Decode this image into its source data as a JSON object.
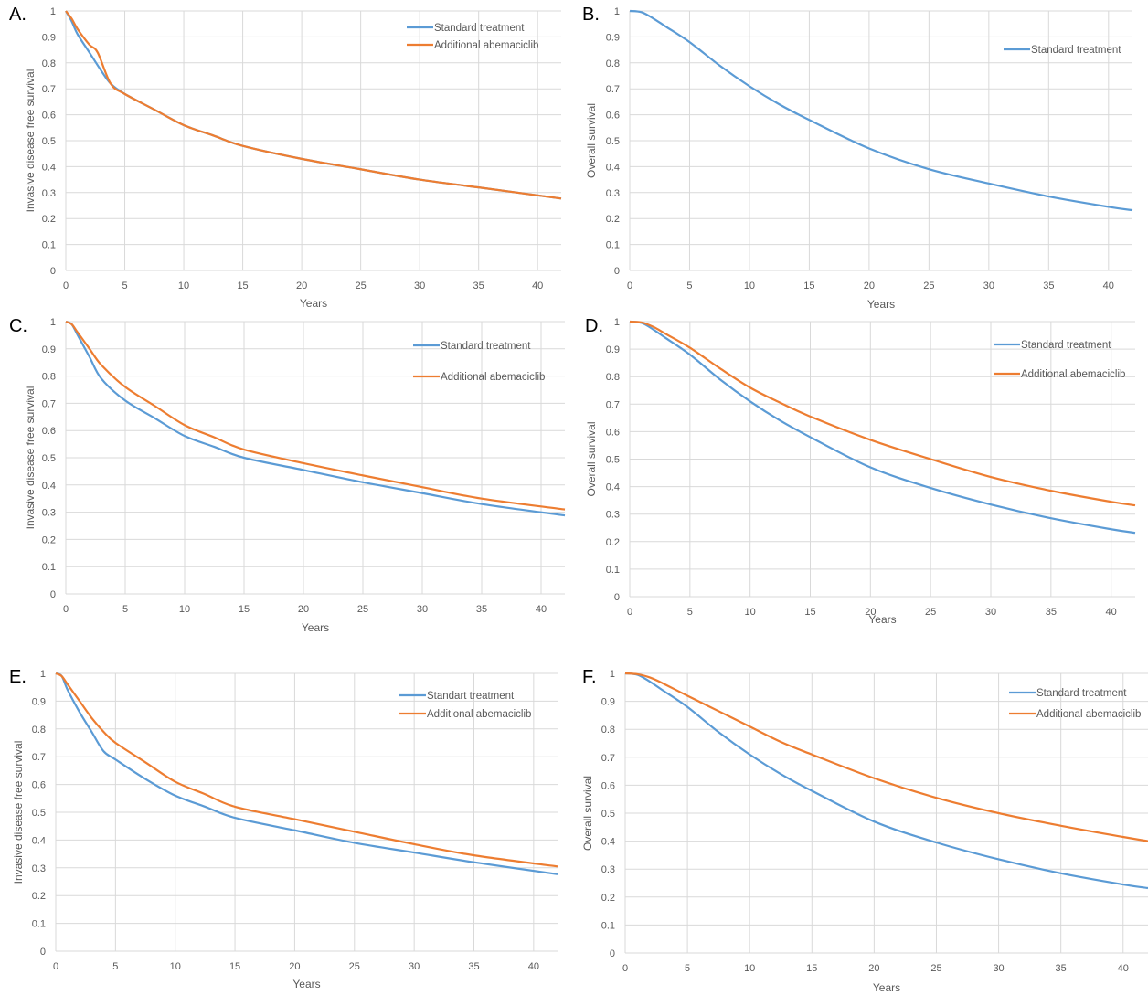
{
  "colors": {
    "standard": "#5b9bd5",
    "abemaciclib": "#ed7d31",
    "grid": "#d9d9d9",
    "tick_text": "#595959",
    "axis_label_text": "#595959"
  },
  "chart_data": [
    {
      "panel": "A.",
      "type": "line",
      "xlabel": "Years",
      "ylabel": "Invasive disease free survival",
      "xlim": [
        0,
        42
      ],
      "ylim": [
        0,
        1
      ],
      "xticks": [
        0,
        5,
        10,
        15,
        20,
        25,
        30,
        35,
        40
      ],
      "yticks": [
        0,
        0.1,
        0.2,
        0.3,
        0.4,
        0.5,
        0.6,
        0.7,
        0.8,
        0.9,
        1
      ],
      "grid": true,
      "legend_position": "top-right",
      "series": [
        {
          "name": "Standard treatment",
          "color_key": "standard",
          "x": [
            0,
            0.5,
            1,
            2,
            3,
            3.8,
            5,
            7.5,
            10,
            12.5,
            15,
            20,
            25,
            30,
            35,
            42
          ],
          "y": [
            1,
            0.96,
            0.91,
            0.84,
            0.77,
            0.72,
            0.68,
            0.62,
            0.56,
            0.52,
            0.48,
            0.43,
            0.39,
            0.35,
            0.32,
            0.277
          ]
        },
        {
          "name": "Additional abemaciclib",
          "color_key": "abemaciclib",
          "x": [
            0,
            0.5,
            1,
            2,
            2.7,
            3.8,
            5,
            7.5,
            10,
            12.5,
            15,
            20,
            25,
            30,
            35,
            42
          ],
          "y": [
            1,
            0.97,
            0.93,
            0.87,
            0.84,
            0.72,
            0.68,
            0.62,
            0.56,
            0.52,
            0.48,
            0.43,
            0.39,
            0.35,
            0.32,
            0.277
          ]
        }
      ]
    },
    {
      "panel": "B.",
      "type": "line",
      "xlabel": "Years",
      "ylabel": "Overall survival",
      "xlim": [
        0,
        42
      ],
      "ylim": [
        0,
        1
      ],
      "xticks": [
        0,
        5,
        10,
        15,
        20,
        25,
        30,
        35,
        40
      ],
      "yticks": [
        0,
        0.1,
        0.2,
        0.3,
        0.4,
        0.5,
        0.6,
        0.7,
        0.8,
        0.9,
        1
      ],
      "grid": true,
      "legend_position": "top-right",
      "series": [
        {
          "name": "Standard treatment",
          "color_key": "standard",
          "x": [
            0,
            1,
            2,
            3,
            5,
            7.5,
            10,
            12.5,
            15,
            20,
            25,
            30,
            35,
            40,
            42
          ],
          "y": [
            1,
            0.995,
            0.97,
            0.94,
            0.88,
            0.79,
            0.71,
            0.64,
            0.58,
            0.47,
            0.39,
            0.335,
            0.285,
            0.245,
            0.232
          ]
        }
      ]
    },
    {
      "panel": "C.",
      "type": "line",
      "xlabel": "Years",
      "ylabel": "Invasive disease free survival",
      "xlim": [
        0,
        42
      ],
      "ylim": [
        0,
        1
      ],
      "xticks": [
        0,
        5,
        10,
        15,
        20,
        25,
        30,
        35,
        40
      ],
      "yticks": [
        0,
        0.1,
        0.2,
        0.3,
        0.4,
        0.5,
        0.6,
        0.7,
        0.8,
        0.9,
        1
      ],
      "grid": true,
      "legend_position": "top-right",
      "series": [
        {
          "name": "Standard treatment",
          "color_key": "standard",
          "x": [
            0,
            0.5,
            1,
            2,
            3,
            5,
            7.5,
            10,
            12.5,
            15,
            20,
            25,
            30,
            35,
            42
          ],
          "y": [
            1,
            0.99,
            0.95,
            0.87,
            0.79,
            0.71,
            0.645,
            0.58,
            0.54,
            0.5,
            0.455,
            0.41,
            0.37,
            0.33,
            0.288
          ]
        },
        {
          "name": "Additional abemaciclib",
          "color_key": "abemaciclib",
          "x": [
            0,
            0.5,
            1,
            2,
            3,
            5,
            7.5,
            10,
            12.5,
            15,
            20,
            25,
            30,
            35,
            42
          ],
          "y": [
            1,
            0.99,
            0.96,
            0.9,
            0.84,
            0.76,
            0.69,
            0.62,
            0.575,
            0.53,
            0.48,
            0.435,
            0.392,
            0.35,
            0.31
          ]
        }
      ]
    },
    {
      "panel": "D.",
      "type": "line",
      "xlabel": "Years",
      "ylabel": "Overall survival",
      "xlim": [
        0,
        42
      ],
      "ylim": [
        0,
        1
      ],
      "xticks": [
        0,
        5,
        10,
        15,
        20,
        25,
        30,
        35,
        40
      ],
      "yticks": [
        0,
        0.1,
        0.2,
        0.3,
        0.4,
        0.5,
        0.6,
        0.7,
        0.8,
        0.9,
        1
      ],
      "grid": true,
      "legend_position": "top-right",
      "series": [
        {
          "name": "Standard treatment",
          "color_key": "standard",
          "x": [
            0,
            1,
            2,
            3,
            5,
            7.5,
            10,
            12.5,
            15,
            20,
            25,
            30,
            35,
            40,
            42
          ],
          "y": [
            1,
            0.995,
            0.97,
            0.94,
            0.88,
            0.79,
            0.71,
            0.64,
            0.58,
            0.47,
            0.395,
            0.335,
            0.285,
            0.245,
            0.232
          ]
        },
        {
          "name": "Additional abemaciclib",
          "color_key": "abemaciclib",
          "x": [
            0,
            1,
            2,
            3,
            5,
            7.5,
            10,
            12.5,
            15,
            20,
            25,
            30,
            35,
            40,
            42
          ],
          "y": [
            1,
            0.997,
            0.98,
            0.955,
            0.905,
            0.83,
            0.76,
            0.705,
            0.655,
            0.57,
            0.5,
            0.435,
            0.385,
            0.345,
            0.332
          ]
        }
      ]
    },
    {
      "panel": "E.",
      "type": "line",
      "xlabel": "Years",
      "ylabel": "Invasive disease free survival",
      "xlim": [
        0,
        42
      ],
      "ylim": [
        0,
        1
      ],
      "xticks": [
        0,
        5,
        10,
        15,
        20,
        25,
        30,
        35,
        40
      ],
      "yticks": [
        0,
        0.1,
        0.2,
        0.3,
        0.4,
        0.5,
        0.6,
        0.7,
        0.8,
        0.9,
        1
      ],
      "grid": true,
      "legend_position": "top-right",
      "series": [
        {
          "name": "Standart treatment",
          "color_key": "standard",
          "x": [
            0,
            0.5,
            1,
            2,
            3,
            4,
            5,
            7.5,
            10,
            12.5,
            15,
            20,
            25,
            30,
            35,
            42
          ],
          "y": [
            1,
            0.99,
            0.94,
            0.86,
            0.79,
            0.72,
            0.69,
            0.62,
            0.56,
            0.52,
            0.48,
            0.435,
            0.39,
            0.355,
            0.32,
            0.277
          ]
        },
        {
          "name": "Additional abemaciclib",
          "color_key": "abemaciclib",
          "x": [
            0,
            0.5,
            1,
            2,
            3,
            4,
            5,
            7.5,
            10,
            12.5,
            15,
            20,
            25,
            30,
            35,
            42
          ],
          "y": [
            1,
            0.99,
            0.96,
            0.9,
            0.84,
            0.79,
            0.75,
            0.68,
            0.61,
            0.565,
            0.52,
            0.475,
            0.43,
            0.385,
            0.345,
            0.305
          ]
        }
      ]
    },
    {
      "panel": "F.",
      "type": "line",
      "xlabel": "Years",
      "ylabel": "Overall survival",
      "xlim": [
        0,
        42
      ],
      "ylim": [
        0,
        1
      ],
      "xticks": [
        0,
        5,
        10,
        15,
        20,
        25,
        30,
        35,
        40
      ],
      "yticks": [
        0,
        0.1,
        0.2,
        0.3,
        0.4,
        0.5,
        0.6,
        0.7,
        0.8,
        0.9,
        1
      ],
      "grid": true,
      "legend_position": "top-right",
      "series": [
        {
          "name": "Standard treatment",
          "color_key": "standard",
          "x": [
            0,
            1,
            2,
            3,
            5,
            7.5,
            10,
            12.5,
            15,
            20,
            25,
            30,
            35,
            40,
            42
          ],
          "y": [
            1,
            0.995,
            0.97,
            0.94,
            0.88,
            0.79,
            0.71,
            0.64,
            0.58,
            0.47,
            0.395,
            0.335,
            0.285,
            0.245,
            0.232
          ]
        },
        {
          "name": "Additional abemaciclib",
          "color_key": "abemaciclib",
          "x": [
            0,
            1,
            2,
            3,
            5,
            7.5,
            10,
            12.5,
            15,
            20,
            25,
            30,
            35,
            40,
            42
          ],
          "y": [
            1,
            0.997,
            0.985,
            0.965,
            0.92,
            0.865,
            0.81,
            0.755,
            0.71,
            0.625,
            0.555,
            0.5,
            0.455,
            0.415,
            0.4
          ]
        }
      ]
    }
  ]
}
